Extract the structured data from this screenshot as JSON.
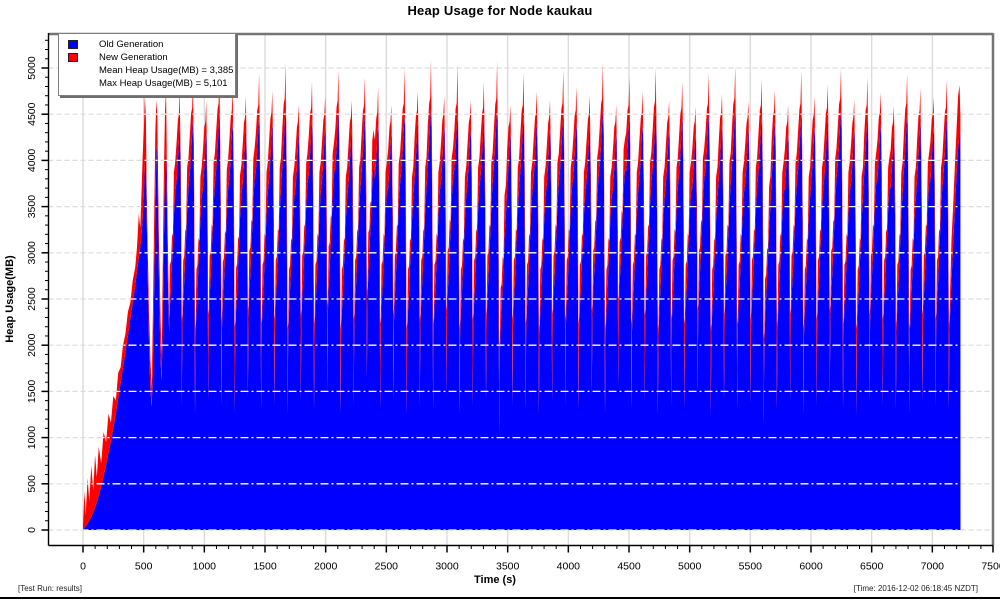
{
  "title": "Heap Usage for Node kaukau",
  "footer": {
    "left": "[Test Run: results]",
    "right": "[Time: 2016-12-02 06:18:45 NZDT]"
  },
  "legend": {
    "items": [
      {
        "label": "Old Generation",
        "color": "#0000ff"
      },
      {
        "label": "New Generation",
        "color": "#ff0000"
      }
    ],
    "stats": [
      "Mean Heap Usage(MB) = 3,385",
      "Max Heap Usage(MB) = 5,101"
    ]
  },
  "chart_data": {
    "type": "area",
    "title": "Heap Usage for Node kaukau",
    "xlabel": "Time (s)",
    "ylabel": "Heap Usage(MB)",
    "xlim": [
      0,
      7500
    ],
    "ylim": [
      0,
      5380
    ],
    "x_major_step": 500,
    "x_minor_step": 100,
    "y_major_step": 500,
    "y_minor_step": 100,
    "y_label_max": 5000,
    "grid": true,
    "legend_position": "top-left",
    "mean_heap_mb": 3385,
    "max_heap_mb": 5101,
    "colors": {
      "old_generation": "#0000ff",
      "new_generation": "#ff0000",
      "grid_under": "#dcdcdc",
      "grid_over": "#ffffff",
      "axis": "#000000",
      "frame": "#757575"
    },
    "ramp": [
      [
        0,
        5,
        60
      ],
      [
        12,
        20,
        420
      ],
      [
        22,
        40,
        160
      ],
      [
        38,
        70,
        560
      ],
      [
        52,
        100,
        310
      ],
      [
        68,
        140,
        700
      ],
      [
        84,
        190,
        430
      ],
      [
        100,
        240,
        810
      ],
      [
        114,
        300,
        570
      ],
      [
        130,
        370,
        900
      ],
      [
        150,
        470,
        720
      ],
      [
        170,
        580,
        1060
      ],
      [
        190,
        700,
        950
      ],
      [
        210,
        830,
        1260
      ],
      [
        230,
        960,
        1160
      ],
      [
        250,
        1100,
        1450
      ],
      [
        270,
        1260,
        1400
      ],
      [
        290,
        1420,
        1700
      ],
      [
        310,
        1590,
        1760
      ],
      [
        330,
        1760,
        2000
      ],
      [
        350,
        1930,
        2130
      ],
      [
        370,
        2100,
        2360
      ],
      [
        390,
        2280,
        2460
      ],
      [
        410,
        2460,
        2700
      ],
      [
        430,
        2640,
        2840
      ],
      [
        445,
        2800,
        3060
      ],
      [
        460,
        2950,
        3420
      ],
      [
        472,
        3060,
        3270
      ],
      [
        482,
        3180,
        3650
      ],
      [
        492,
        3380,
        4050
      ],
      [
        502,
        3650,
        4350
      ],
      [
        510,
        3950,
        4700
      ],
      [
        518,
        4050,
        4460
      ],
      [
        526,
        3300,
        3620
      ],
      [
        536,
        2600,
        2920
      ],
      [
        546,
        1900,
        2320
      ],
      [
        556,
        1500,
        1820
      ],
      [
        566,
        1330,
        1530
      ],
      [
        576,
        1750,
        2350
      ],
      [
        586,
        2550,
        3320
      ],
      [
        596,
        3420,
        4300
      ],
      [
        605,
        4100,
        4650
      ],
      [
        612,
        4180,
        4480
      ],
      [
        620,
        3300,
        3720
      ],
      [
        630,
        2400,
        2920
      ],
      [
        640,
        1800,
        2230
      ],
      [
        648,
        1620,
        1900
      ],
      [
        656,
        2150,
        2720
      ],
      [
        666,
        3050,
        3820
      ],
      [
        676,
        3850,
        4520
      ],
      [
        684,
        4150,
        4780
      ],
      [
        692,
        3500,
        3920
      ],
      [
        700,
        2700,
        3050
      ]
    ],
    "steady": {
      "start_x": 710,
      "period_s": 109,
      "cycle_profile": [
        [
          0.0,
          "v",
          0,
          140
        ],
        [
          0.06,
          "v",
          260,
          720
        ],
        [
          0.14,
          "v",
          480,
          760
        ],
        [
          0.22,
          "v",
          760,
          1060
        ],
        [
          0.28,
          "v",
          950,
          1030
        ],
        [
          0.36,
          "v",
          1250,
          1720
        ],
        [
          0.46,
          "v",
          1500,
          1830
        ],
        [
          0.56,
          "P",
          -600,
          -180
        ],
        [
          0.66,
          "P",
          -380,
          60
        ],
        [
          0.74,
          "P",
          -160,
          120
        ],
        [
          0.8,
          "PR",
          0,
          0
        ],
        [
          0.83,
          "P",
          -120,
          40
        ],
        [
          0.87,
          "P",
          -650,
          -320
        ],
        [
          0.91,
          "v2",
          700,
          1250
        ],
        [
          0.955,
          "v2",
          -850,
          80
        ]
      ],
      "cycles": [
        [
          4380,
          4780,
          2150
        ],
        [
          4450,
          4900,
          2200
        ],
        [
          4300,
          4650,
          2100
        ],
        [
          4500,
          5000,
          2250
        ],
        [
          4420,
          4800,
          2180
        ],
        [
          4350,
          4700,
          2120
        ],
        [
          4480,
          4950,
          2300
        ],
        [
          4400,
          4750,
          2150
        ],
        [
          4550,
          5050,
          2200
        ],
        [
          4300,
          4600,
          2100
        ],
        [
          4450,
          4850,
          2250
        ],
        [
          4380,
          4700,
          2150
        ],
        [
          4520,
          4980,
          2350
        ],
        [
          4350,
          4650,
          2100
        ],
        [
          4480,
          4900,
          2200
        ],
        [
          4400,
          4800,
          2500
        ],
        [
          4300,
          4600,
          2150
        ],
        [
          4500,
          5000,
          2250
        ],
        [
          4420,
          4750,
          2100
        ],
        [
          4560,
          5101,
          2200
        ],
        [
          4380,
          4700,
          2150
        ],
        [
          4500,
          5050,
          2300
        ],
        [
          4350,
          4650,
          2100
        ],
        [
          4450,
          4850,
          2200
        ],
        [
          4550,
          5080,
          2250
        ],
        [
          4300,
          4600,
          1900
        ],
        [
          4480,
          4950,
          2200
        ],
        [
          4400,
          4750,
          2150
        ],
        [
          4350,
          4650,
          2100
        ],
        [
          4500,
          4980,
          2250
        ],
        [
          4420,
          4800,
          2200
        ],
        [
          4380,
          4700,
          2150
        ],
        [
          4550,
          5050,
          2300
        ],
        [
          4300,
          4600,
          2100
        ],
        [
          4480,
          4900,
          2400
        ],
        [
          4400,
          4750,
          2150
        ],
        [
          4520,
          5000,
          2250
        ],
        [
          4350,
          4650,
          2100
        ],
        [
          4450,
          4850,
          2200
        ],
        [
          4300,
          4580,
          2150
        ],
        [
          4500,
          4950,
          2300
        ],
        [
          4400,
          4720,
          2100
        ],
        [
          4550,
          5020,
          2250
        ],
        [
          4350,
          4640,
          2150
        ],
        [
          4480,
          4880,
          2200
        ],
        [
          4420,
          4760,
          2000
        ],
        [
          4300,
          4600,
          2150
        ],
        [
          4500,
          4970,
          2250
        ],
        [
          4380,
          4700,
          2100
        ],
        [
          4450,
          4820,
          2200
        ],
        [
          4550,
          5000,
          2300
        ],
        [
          4350,
          4660,
          2150
        ],
        [
          4480,
          4900,
          2100
        ],
        [
          4400,
          4740,
          2250
        ],
        [
          4300,
          4590,
          2200
        ],
        [
          4500,
          4940,
          2150
        ],
        [
          4420,
          4780,
          2100
        ],
        [
          4380,
          4690,
          2250
        ],
        [
          4460,
          4870,
          2200
        ]
      ]
    },
    "tail": [
      [
        7141,
        2150,
        2290
      ],
      [
        7158,
        2700,
        3150
      ],
      [
        7172,
        3100,
        3520
      ],
      [
        7186,
        3500,
        3950
      ],
      [
        7200,
        3850,
        4350
      ],
      [
        7212,
        4120,
        4700
      ],
      [
        7224,
        4280,
        4815
      ],
      [
        7231,
        4280,
        4480
      ],
      [
        7232,
        0,
        0
      ]
    ]
  }
}
